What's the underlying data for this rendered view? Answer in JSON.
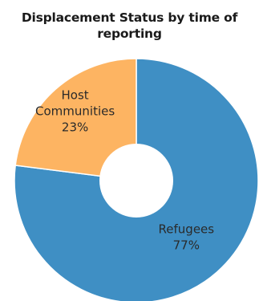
{
  "chart_data": {
    "type": "pie",
    "variant": "donut",
    "title_lines": [
      "Displacement Status by time of",
      "reporting"
    ],
    "slices": [
      {
        "label_lines": [
          "Refugees"
        ],
        "value": 77,
        "value_label": "77%",
        "color": "#3f8fc4"
      },
      {
        "label_lines": [
          "Host",
          "Communities"
        ],
        "value": 23,
        "value_label": "23%",
        "color": "#fdb462"
      }
    ],
    "legend": "none",
    "start": "top",
    "direction": "clockwise"
  }
}
